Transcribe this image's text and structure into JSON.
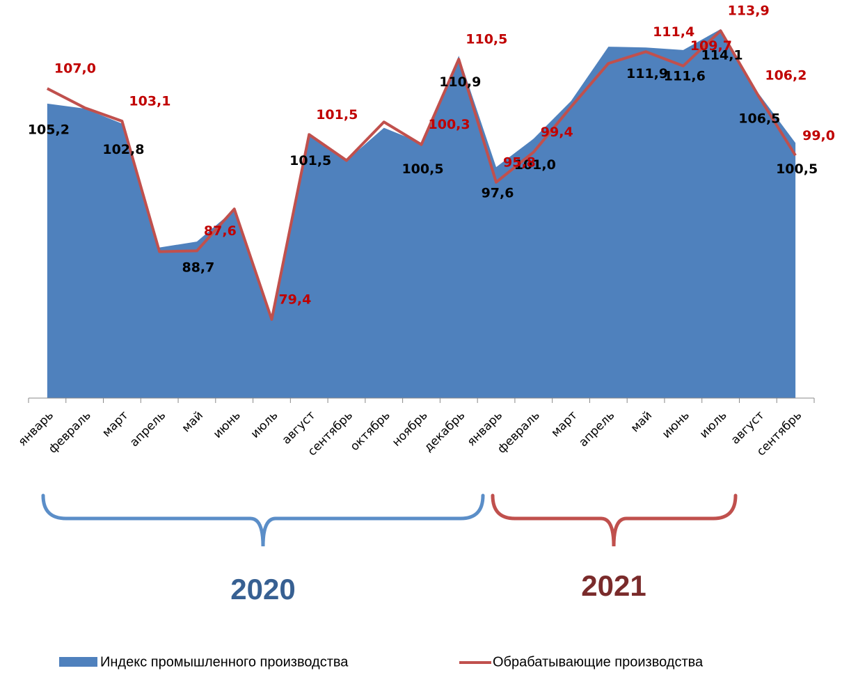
{
  "chart_data": {
    "type": "area-line",
    "categories": [
      "январь",
      "февраль",
      "март",
      "апрель",
      "май",
      "июнь",
      "июль",
      "август",
      "сентябрь",
      "октябрь",
      "ноябрь",
      "декабрь",
      "январь",
      "февраль",
      "март",
      "апрель",
      "май",
      "июнь",
      "июль",
      "август",
      "сентябрь"
    ],
    "series": [
      {
        "name": "Индекс промышленного производства",
        "kind": "area",
        "color": "#4f81bd",
        "label_color": "#000000",
        "values": [
          105.2,
          104.6,
          102.8,
          88.0,
          88.7,
          92.5,
          79.6,
          101.5,
          98.4,
          102.3,
          100.5,
          110.9,
          97.6,
          101.0,
          105.5,
          112.0,
          111.9,
          111.6,
          114.1,
          106.5,
          100.5
        ],
        "value_labels": [
          "105,2",
          null,
          "102,8",
          null,
          "88,7",
          null,
          null,
          "101,5",
          null,
          null,
          "100,5",
          "110,9",
          "97,6",
          "101,0",
          null,
          null,
          "111,9",
          "111,6",
          "114,1",
          "106,5",
          "100,5"
        ]
      },
      {
        "name": "Обрабатывающие производства",
        "kind": "line",
        "color": "#c0504d",
        "label_color": "#c00000",
        "values": [
          107.0,
          104.7,
          103.1,
          87.5,
          87.6,
          92.6,
          79.4,
          101.5,
          98.4,
          103.0,
          100.3,
          110.5,
          95.8,
          99.4,
          104.8,
          110.0,
          111.4,
          109.7,
          113.9,
          106.2,
          99.0
        ],
        "value_labels": [
          "107,0",
          null,
          "103,1",
          null,
          "87,6",
          null,
          "79,4",
          "101,5",
          null,
          null,
          "100,3",
          "110,5",
          "95,8",
          "99,4",
          null,
          null,
          "111,4",
          "109,7",
          "113,9",
          "106,2",
          "99,0"
        ]
      }
    ],
    "ylim": [
      70,
      115
    ],
    "year_labels": [
      {
        "text": "2020",
        "color": "#376092"
      },
      {
        "text": "2021",
        "color": "#7a2b2b"
      }
    ]
  }
}
